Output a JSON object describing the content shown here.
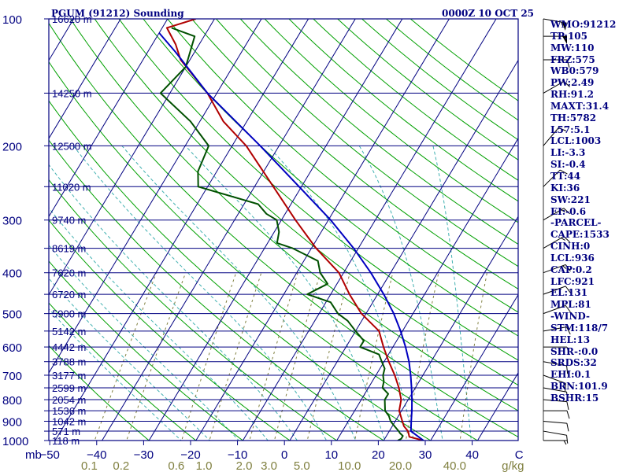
{
  "header": {
    "station": "PGUM (91212) Sounding",
    "valid_time": "0000Z 10 OCT 25"
  },
  "params": [
    "WMO:91212",
    "TP:105",
    "MW:110",
    "FRZ:575",
    "WB0:579",
    "PW:2.49",
    "RH:91.2",
    "MAXT:31.4",
    "TH:5782",
    "L57:5.1",
    "LCL:1003",
    "LI:-3.3",
    "SI:-0.4",
    "TT:44",
    "KI:36",
    "SW:221",
    "EI:-0.6",
    "-PARCEL-",
    "CAPE:1533",
    "CINH:0",
    "LCL:936",
    "CAP:0.2",
    "LFC:921",
    "EL:131",
    "MPL:81",
    "-WIND-",
    "STM:118/7",
    "HEL:13",
    "SHR-:0.0",
    "SRDS:32",
    "EHI:0.1",
    "BRN:101.9",
    "BSHR:15"
  ],
  "colors": {
    "frame": "#000080",
    "isotherm": "#000080",
    "dry_adiabat": "#00a000",
    "moist_adiabat": "#40b0b0",
    "mixing_ratio": "#808040",
    "temperature": "#b00000",
    "dewpoint": "#005000",
    "parcel": "#0000c0",
    "tick_text": "#000080",
    "mixing_text": "#808040"
  },
  "chart_data": {
    "type": "skew-t",
    "x_unit_label": "mb",
    "mixing_ratio_unit": "g/kg",
    "temperature_ticks": [
      -50,
      -40,
      -30,
      -20,
      -10,
      0,
      10,
      20,
      30,
      40
    ],
    "temperature_tick_last": "C",
    "mixing_ratio_labels": [
      "0.1",
      "0.2",
      "0.6",
      "1.0",
      "2.0",
      "3.0",
      "5.0",
      "10.0",
      "20.0",
      "40.0"
    ],
    "pressure_ticks": [
      100,
      200,
      300,
      400,
      500,
      600,
      700,
      800,
      900,
      1000
    ],
    "height_labels": [
      {
        "p": 100,
        "label": "16620 m"
      },
      {
        "p": 150,
        "label": "14250 m"
      },
      {
        "p": 200,
        "label": "12500 m"
      },
      {
        "p": 250,
        "label": "11020 m"
      },
      {
        "p": 300,
        "label": "9740 m"
      },
      {
        "p": 350,
        "label": "8619 m"
      },
      {
        "p": 400,
        "label": "7620 m"
      },
      {
        "p": 450,
        "label": "6720 m"
      },
      {
        "p": 500,
        "label": "5900 m"
      },
      {
        "p": 550,
        "label": "5142 m"
      },
      {
        "p": 600,
        "label": "4442 m"
      },
      {
        "p": 650,
        "label": "3788 m"
      },
      {
        "p": 700,
        "label": "3177 m"
      },
      {
        "p": 750,
        "label": "2599 m"
      },
      {
        "p": 800,
        "label": "2054 m"
      },
      {
        "p": 850,
        "label": "1536 m"
      },
      {
        "p": 900,
        "label": "1042 m"
      },
      {
        "p": 950,
        "label": "571 m"
      },
      {
        "p": 1000,
        "label": "118 m"
      }
    ],
    "series": [
      {
        "name": "temperature",
        "points": [
          [
            1000,
            28.5
          ],
          [
            980,
            25
          ],
          [
            950,
            24
          ],
          [
            925,
            22.5
          ],
          [
            900,
            21.5
          ],
          [
            850,
            19.5
          ],
          [
            800,
            18.5
          ],
          [
            750,
            16.5
          ],
          [
            700,
            14
          ],
          [
            650,
            11
          ],
          [
            600,
            8
          ],
          [
            550,
            5
          ],
          [
            500,
            -1
          ],
          [
            450,
            -6
          ],
          [
            400,
            -11
          ],
          [
            350,
            -19
          ],
          [
            300,
            -27
          ],
          [
            250,
            -36
          ],
          [
            200,
            -47
          ],
          [
            175,
            -55
          ],
          [
            150,
            -62
          ],
          [
            125,
            -72
          ],
          [
            115,
            -75
          ],
          [
            105,
            -79
          ],
          [
            100,
            -74
          ]
        ]
      },
      {
        "name": "dewpoint",
        "points": [
          [
            1000,
            23
          ],
          [
            990,
            23.5
          ],
          [
            975,
            23.5
          ],
          [
            960,
            22.5
          ],
          [
            950,
            22
          ],
          [
            925,
            20.5
          ],
          [
            900,
            19
          ],
          [
            875,
            18
          ],
          [
            850,
            16.5
          ],
          [
            800,
            15
          ],
          [
            775,
            15
          ],
          [
            750,
            13
          ],
          [
            725,
            12.5
          ],
          [
            700,
            11.5
          ],
          [
            675,
            11
          ],
          [
            650,
            9.5
          ],
          [
            625,
            8
          ],
          [
            600,
            3
          ],
          [
            580,
            3
          ],
          [
            550,
            0
          ],
          [
            520,
            -3
          ],
          [
            500,
            -6
          ],
          [
            470,
            -9
          ],
          [
            450,
            -15
          ],
          [
            425,
            -12
          ],
          [
            400,
            -15
          ],
          [
            375,
            -17
          ],
          [
            350,
            -24
          ],
          [
            340,
            -28
          ],
          [
            320,
            -29
          ],
          [
            300,
            -31
          ],
          [
            290,
            -34
          ],
          [
            275,
            -37
          ],
          [
            250,
            -52
          ],
          [
            230,
            -54
          ],
          [
            200,
            -55
          ],
          [
            175,
            -62
          ],
          [
            150,
            -72
          ],
          [
            130,
            -70
          ],
          [
            110,
            -72
          ],
          [
            105,
            -78
          ]
        ]
      },
      {
        "name": "parcel",
        "points": [
          [
            1000,
            28.5
          ],
          [
            950,
            24.6
          ],
          [
            900,
            23.4
          ],
          [
            850,
            22.2
          ],
          [
            800,
            20.8
          ],
          [
            750,
            19.2
          ],
          [
            700,
            17.4
          ],
          [
            650,
            15.3
          ],
          [
            600,
            12.7
          ],
          [
            550,
            9.6
          ],
          [
            500,
            5.9
          ],
          [
            450,
            1.3
          ],
          [
            400,
            -4.2
          ],
          [
            350,
            -11
          ],
          [
            300,
            -19.5
          ],
          [
            250,
            -30.5
          ],
          [
            200,
            -44
          ],
          [
            150,
            -62
          ],
          [
            120,
            -74
          ],
          [
            108,
            -80
          ]
        ]
      }
    ],
    "winds": [
      {
        "p": 1000,
        "dir": 90,
        "spd": 5
      },
      {
        "p": 950,
        "dir": 100,
        "spd": 10
      },
      {
        "p": 900,
        "dir": 95,
        "spd": 10
      },
      {
        "p": 850,
        "dir": 90,
        "spd": 10
      },
      {
        "p": 800,
        "dir": 95,
        "spd": 10
      },
      {
        "p": 750,
        "dir": 100,
        "spd": 10
      },
      {
        "p": 700,
        "dir": 110,
        "spd": 10
      },
      {
        "p": 650,
        "dir": 100,
        "spd": 10
      },
      {
        "p": 600,
        "dir": 90,
        "spd": 10
      },
      {
        "p": 550,
        "dir": 80,
        "spd": 10
      },
      {
        "p": 500,
        "dir": 70,
        "spd": 10
      },
      {
        "p": 450,
        "dir": 70,
        "spd": 10
      },
      {
        "p": 400,
        "dir": 70,
        "spd": 15
      },
      {
        "p": 350,
        "dir": 60,
        "spd": 15
      },
      {
        "p": 300,
        "dir": 60,
        "spd": 15
      },
      {
        "p": 250,
        "dir": 45,
        "spd": 10
      },
      {
        "p": 200,
        "dir": 40,
        "spd": 10
      },
      {
        "p": 150,
        "dir": 60,
        "spd": 10
      },
      {
        "p": 125,
        "dir": 90,
        "spd": 10
      },
      {
        "p": 110,
        "dir": 90,
        "spd": 50
      },
      {
        "p": 100,
        "dir": 100,
        "spd": 55
      }
    ]
  }
}
